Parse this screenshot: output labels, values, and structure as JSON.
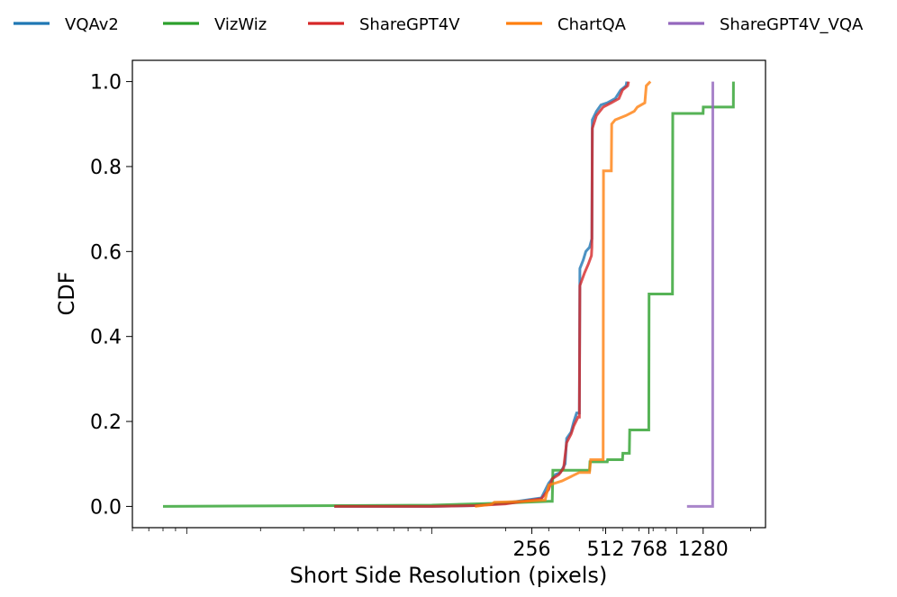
{
  "chart_data": {
    "type": "line",
    "title": "",
    "xlabel": "Short Side Resolution (pixels)",
    "ylabel": "CDF",
    "xscale": "log",
    "xlim": [
      6,
      2300
    ],
    "ylim": [
      -0.05,
      1.05
    ],
    "x_ticks": [
      {
        "value": 256,
        "label": "256"
      },
      {
        "value": 512,
        "label": "512"
      },
      {
        "value": 768,
        "label": "768"
      },
      {
        "value": 1280,
        "label": "1280"
      }
    ],
    "y_ticks": [
      {
        "value": 0.0,
        "label": "0.0"
      },
      {
        "value": 0.2,
        "label": "0.2"
      },
      {
        "value": 0.4,
        "label": "0.4"
      },
      {
        "value": 0.6,
        "label": "0.6"
      },
      {
        "value": 0.8,
        "label": "0.8"
      },
      {
        "value": 1.0,
        "label": "1.0"
      }
    ],
    "grid": false,
    "legend_position": "top, above plot",
    "series": [
      {
        "name": "VQAv2",
        "color": "#1f77b4",
        "points": [
          [
            40,
            0.0
          ],
          [
            100,
            0.0
          ],
          [
            150,
            0.002
          ],
          [
            200,
            0.008
          ],
          [
            280,
            0.02
          ],
          [
            300,
            0.055
          ],
          [
            320,
            0.075
          ],
          [
            335,
            0.08
          ],
          [
            350,
            0.1
          ],
          [
            355,
            0.16
          ],
          [
            370,
            0.175
          ],
          [
            380,
            0.2
          ],
          [
            390,
            0.22
          ],
          [
            400,
            0.22
          ],
          [
            402,
            0.56
          ],
          [
            415,
            0.58
          ],
          [
            425,
            0.6
          ],
          [
            440,
            0.61
          ],
          [
            450,
            0.63
          ],
          [
            452,
            0.91
          ],
          [
            470,
            0.93
          ],
          [
            490,
            0.945
          ],
          [
            520,
            0.95
          ],
          [
            560,
            0.96
          ],
          [
            590,
            0.98
          ],
          [
            620,
            0.99
          ],
          [
            625,
            1.0
          ]
        ]
      },
      {
        "name": "VizWiz",
        "color": "#2ca02c",
        "points": [
          [
            8,
            0.0
          ],
          [
            100,
            0.003
          ],
          [
            200,
            0.008
          ],
          [
            300,
            0.012
          ],
          [
            310,
            0.012
          ],
          [
            312,
            0.085
          ],
          [
            440,
            0.085
          ],
          [
            442,
            0.105
          ],
          [
            520,
            0.105
          ],
          [
            522,
            0.11
          ],
          [
            600,
            0.11
          ],
          [
            602,
            0.125
          ],
          [
            640,
            0.125
          ],
          [
            642,
            0.18
          ],
          [
            768,
            0.18
          ],
          [
            770,
            0.5
          ],
          [
            960,
            0.5
          ],
          [
            962,
            0.925
          ],
          [
            1280,
            0.925
          ],
          [
            1282,
            0.94
          ],
          [
            1700,
            0.94
          ],
          [
            1702,
            1.0
          ]
        ]
      },
      {
        "name": "ShareGPT4V",
        "color": "#d62728",
        "points": [
          [
            40,
            0.0
          ],
          [
            100,
            0.0
          ],
          [
            150,
            0.002
          ],
          [
            200,
            0.006
          ],
          [
            280,
            0.018
          ],
          [
            300,
            0.04
          ],
          [
            310,
            0.065
          ],
          [
            330,
            0.075
          ],
          [
            345,
            0.09
          ],
          [
            355,
            0.15
          ],
          [
            370,
            0.17
          ],
          [
            380,
            0.19
          ],
          [
            395,
            0.21
          ],
          [
            400,
            0.21
          ],
          [
            402,
            0.52
          ],
          [
            420,
            0.55
          ],
          [
            435,
            0.57
          ],
          [
            448,
            0.59
          ],
          [
            450,
            0.61
          ],
          [
            452,
            0.89
          ],
          [
            470,
            0.92
          ],
          [
            500,
            0.94
          ],
          [
            540,
            0.95
          ],
          [
            580,
            0.96
          ],
          [
            600,
            0.98
          ],
          [
            630,
            0.99
          ],
          [
            635,
            1.0
          ]
        ]
      },
      {
        "name": "ChartQA",
        "color": "#ff7f0e",
        "points": [
          [
            150,
            0.0
          ],
          [
            175,
            0.005
          ],
          [
            180,
            0.01
          ],
          [
            240,
            0.012
          ],
          [
            290,
            0.015
          ],
          [
            300,
            0.05
          ],
          [
            340,
            0.06
          ],
          [
            400,
            0.08
          ],
          [
            440,
            0.08
          ],
          [
            445,
            0.11
          ],
          [
            500,
            0.11
          ],
          [
            502,
            0.79
          ],
          [
            540,
            0.79
          ],
          [
            542,
            0.9
          ],
          [
            560,
            0.91
          ],
          [
            620,
            0.92
          ],
          [
            670,
            0.93
          ],
          [
            690,
            0.94
          ],
          [
            740,
            0.95
          ],
          [
            750,
            0.99
          ],
          [
            780,
            1.0
          ]
        ]
      },
      {
        "name": "ShareGPT4V_VQA",
        "color": "#9467bd",
        "points": [
          [
            1100,
            0.0
          ],
          [
            1400,
            0.0
          ],
          [
            1402,
            1.0
          ]
        ]
      }
    ]
  }
}
